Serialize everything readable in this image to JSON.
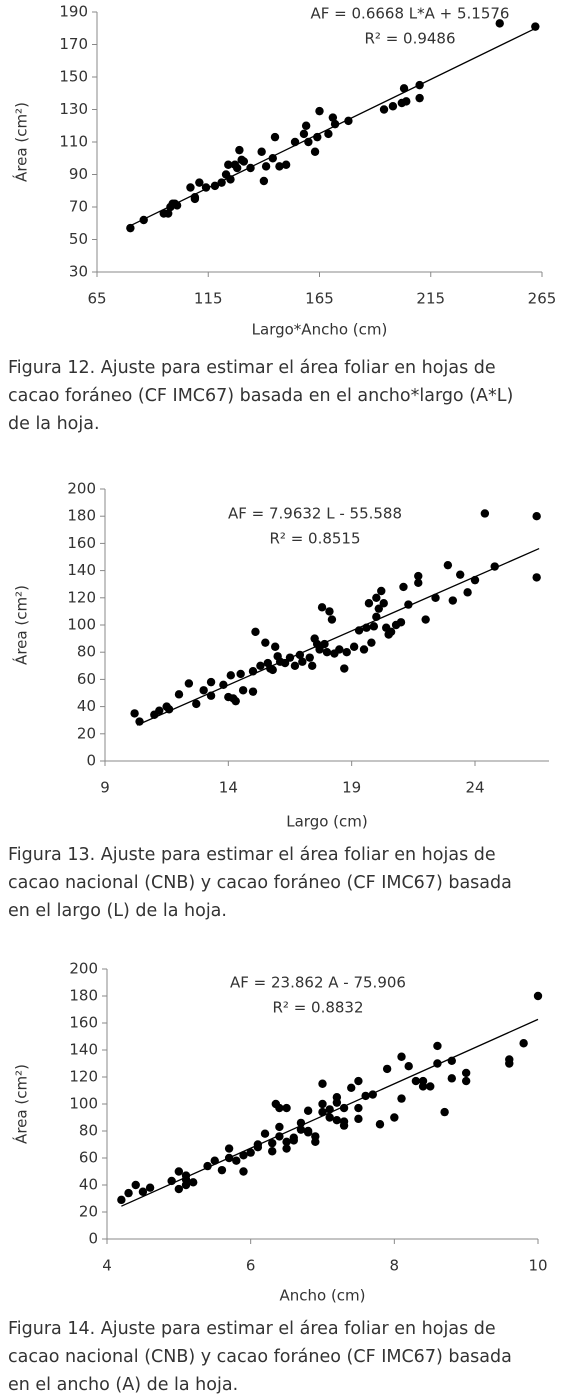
{
  "chart_data": [
    {
      "type": "scatter",
      "xlabel": "Largo*Ancho (cm)",
      "ylabel": "Área (cm²)",
      "annotation": [
        "AF = 0.6668 L*A + 5.1576",
        "R² = 0.9486"
      ],
      "xlim": [
        65,
        265
      ],
      "xticks": [
        65,
        115,
        165,
        215,
        265
      ],
      "ylim": [
        30,
        190
      ],
      "yticks": [
        30,
        50,
        70,
        90,
        110,
        130,
        150,
        170,
        190
      ],
      "color": "#000000",
      "x": [
        80,
        86,
        95,
        97,
        98,
        99,
        100,
        101,
        107,
        109,
        109,
        111,
        114,
        118,
        121,
        123,
        124,
        125,
        127,
        128,
        129,
        130,
        131,
        134,
        139,
        140,
        141,
        144,
        145,
        147,
        150,
        154,
        158,
        159,
        160,
        163,
        164,
        165,
        169,
        171,
        172,
        178,
        194,
        198,
        202,
        203,
        204,
        210,
        210,
        246,
        262
      ],
      "values": [
        57,
        62,
        66,
        66,
        70,
        72,
        72,
        71,
        82,
        75,
        76,
        85,
        82,
        83,
        85,
        90,
        96,
        87,
        96,
        94,
        105,
        99,
        98,
        94,
        104,
        86,
        95,
        100,
        113,
        95,
        96,
        110,
        115,
        120,
        110,
        104,
        113,
        129,
        115,
        125,
        121,
        123,
        130,
        132,
        134,
        143,
        135,
        145,
        137,
        183,
        181
      ],
      "trendline": {
        "x": [
          80,
          262
        ],
        "y": [
          58.5,
          179.9
        ]
      },
      "caption": [
        "Figura 12. Ajuste para estimar el área foliar en hojas de",
        "cacao foráneo (CF IMC67) basada en el ancho*largo (A*L)",
        "de la hoja."
      ]
    },
    {
      "type": "scatter",
      "xlabel": "Largo (cm)",
      "ylabel": "Área (cm²)",
      "annotation": [
        "AF = 7.9632 L - 55.588",
        "R² = 0.8515"
      ],
      "xlim": [
        9,
        27
      ],
      "xticks": [
        9,
        14,
        19,
        24
      ],
      "ylim": [
        0,
        200
      ],
      "yticks": [
        0,
        20,
        40,
        60,
        80,
        100,
        120,
        140,
        160,
        180,
        200
      ],
      "color": "#000000",
      "x": [
        10.2,
        10.4,
        11.0,
        11.2,
        11.5,
        11.6,
        12.0,
        12.4,
        12.7,
        13.0,
        13.3,
        13.3,
        13.8,
        14.0,
        14.1,
        14.2,
        14.3,
        14.5,
        14.6,
        15.0,
        15.0,
        15.1,
        15.3,
        15.5,
        15.6,
        15.7,
        15.8,
        15.9,
        16.0,
        16.1,
        16.3,
        16.5,
        16.7,
        16.9,
        17.0,
        17.3,
        17.4,
        17.5,
        17.6,
        17.7,
        17.8,
        17.9,
        18.0,
        18.1,
        18.2,
        18.3,
        18.5,
        18.7,
        18.8,
        19.1,
        19.3,
        19.5,
        19.6,
        19.7,
        19.8,
        19.9,
        20.0,
        20.0,
        20.1,
        20.2,
        20.3,
        20.4,
        20.5,
        20.6,
        20.8,
        21.0,
        21.1,
        21.3,
        21.7,
        21.7,
        22.0,
        22.4,
        22.9,
        23.1,
        23.4,
        23.7,
        24.0,
        24.4,
        24.8,
        26.5,
        26.5
      ],
      "values": [
        35,
        29,
        34,
        37,
        40,
        38,
        49,
        57,
        42,
        52,
        58,
        48,
        56,
        47,
        63,
        46,
        44,
        64,
        52,
        51,
        66,
        95,
        70,
        87,
        72,
        68,
        67,
        84,
        77,
        73,
        72,
        76,
        70,
        78,
        73,
        76,
        70,
        90,
        86,
        82,
        113,
        86,
        80,
        110,
        104,
        79,
        82,
        68,
        80,
        84,
        96,
        82,
        98,
        116,
        87,
        99,
        106,
        120,
        112,
        125,
        116,
        98,
        93,
        95,
        100,
        102,
        128,
        115,
        131,
        136,
        104,
        120,
        144,
        118,
        137,
        124,
        133,
        182,
        143,
        180,
        135
      ],
      "trendline": {
        "x": [
          10.3,
          26.6
        ],
        "y": [
          26.4,
          156.2
        ]
      },
      "caption": [
        "Figura 13. Ajuste para estimar el área foliar en hojas de",
        "cacao nacional (CNB) y cacao foráneo (CF IMC67) basada",
        "en el largo (L) de la hoja."
      ]
    },
    {
      "type": "scatter",
      "xlabel": "Ancho (cm)",
      "ylabel": "Área (cm²)",
      "annotation": [
        "AF = 23.862 A - 75.906",
        "R² = 0.8832"
      ],
      "xlim": [
        4,
        10
      ],
      "xticks": [
        4,
        6,
        8,
        10
      ],
      "ylim": [
        0,
        200
      ],
      "yticks": [
        0,
        20,
        40,
        60,
        80,
        100,
        120,
        140,
        160,
        180,
        200
      ],
      "color": "#000000",
      "x": [
        4.2,
        4.3,
        4.4,
        4.5,
        4.6,
        4.9,
        5.0,
        5.0,
        5.1,
        5.1,
        5.1,
        5.2,
        5.4,
        5.5,
        5.6,
        5.7,
        5.7,
        5.8,
        5.9,
        5.9,
        6.1,
        6.1,
        6.2,
        6.3,
        6.3,
        6.35,
        6.4,
        6.4,
        6.4,
        6.5,
        6.5,
        6.5,
        6.6,
        6.6,
        6.7,
        6.7,
        6.8,
        6.8,
        6.9,
        6.9,
        7.0,
        7.0,
        7.0,
        7.1,
        7.1,
        7.2,
        7.2,
        7.2,
        7.3,
        7.3,
        7.4,
        7.5,
        7.5,
        7.5,
        7.6,
        7.7,
        7.8,
        7.9,
        8.0,
        8.1,
        8.1,
        8.2,
        8.3,
        8.4,
        8.5,
        8.6,
        8.6,
        8.7,
        8.8,
        8.8,
        9.0,
        9.0,
        9.6,
        9.6,
        9.8,
        10.0,
        8.4,
        7.3,
        6.8,
        6.0
      ],
      "values": [
        29,
        34,
        40,
        35,
        38,
        43,
        50,
        37,
        47,
        44,
        40,
        42,
        54,
        58,
        51,
        60,
        67,
        58,
        50,
        62,
        68,
        70,
        78,
        65,
        71,
        100,
        97,
        76,
        83,
        97,
        72,
        67,
        75,
        73,
        81,
        86,
        95,
        80,
        76,
        72,
        115,
        100,
        94,
        96,
        90,
        105,
        101,
        88,
        84,
        97,
        112,
        117,
        97,
        89,
        106,
        107,
        85,
        126,
        90,
        104,
        135,
        128,
        117,
        113,
        113,
        130,
        143,
        94,
        119,
        132,
        123,
        117,
        133,
        130,
        145,
        180,
        117,
        87,
        79,
        64
      ],
      "trendline": {
        "x": [
          4.2,
          10.0
        ],
        "y": [
          24.3,
          162.7
        ]
      },
      "caption": [
        "Figura 14. Ajuste para estimar el área foliar en hojas de",
        "cacao nacional (CNB) y cacao foráneo (CF IMC67) basada",
        "en el ancho (A) de la hoja."
      ]
    }
  ]
}
